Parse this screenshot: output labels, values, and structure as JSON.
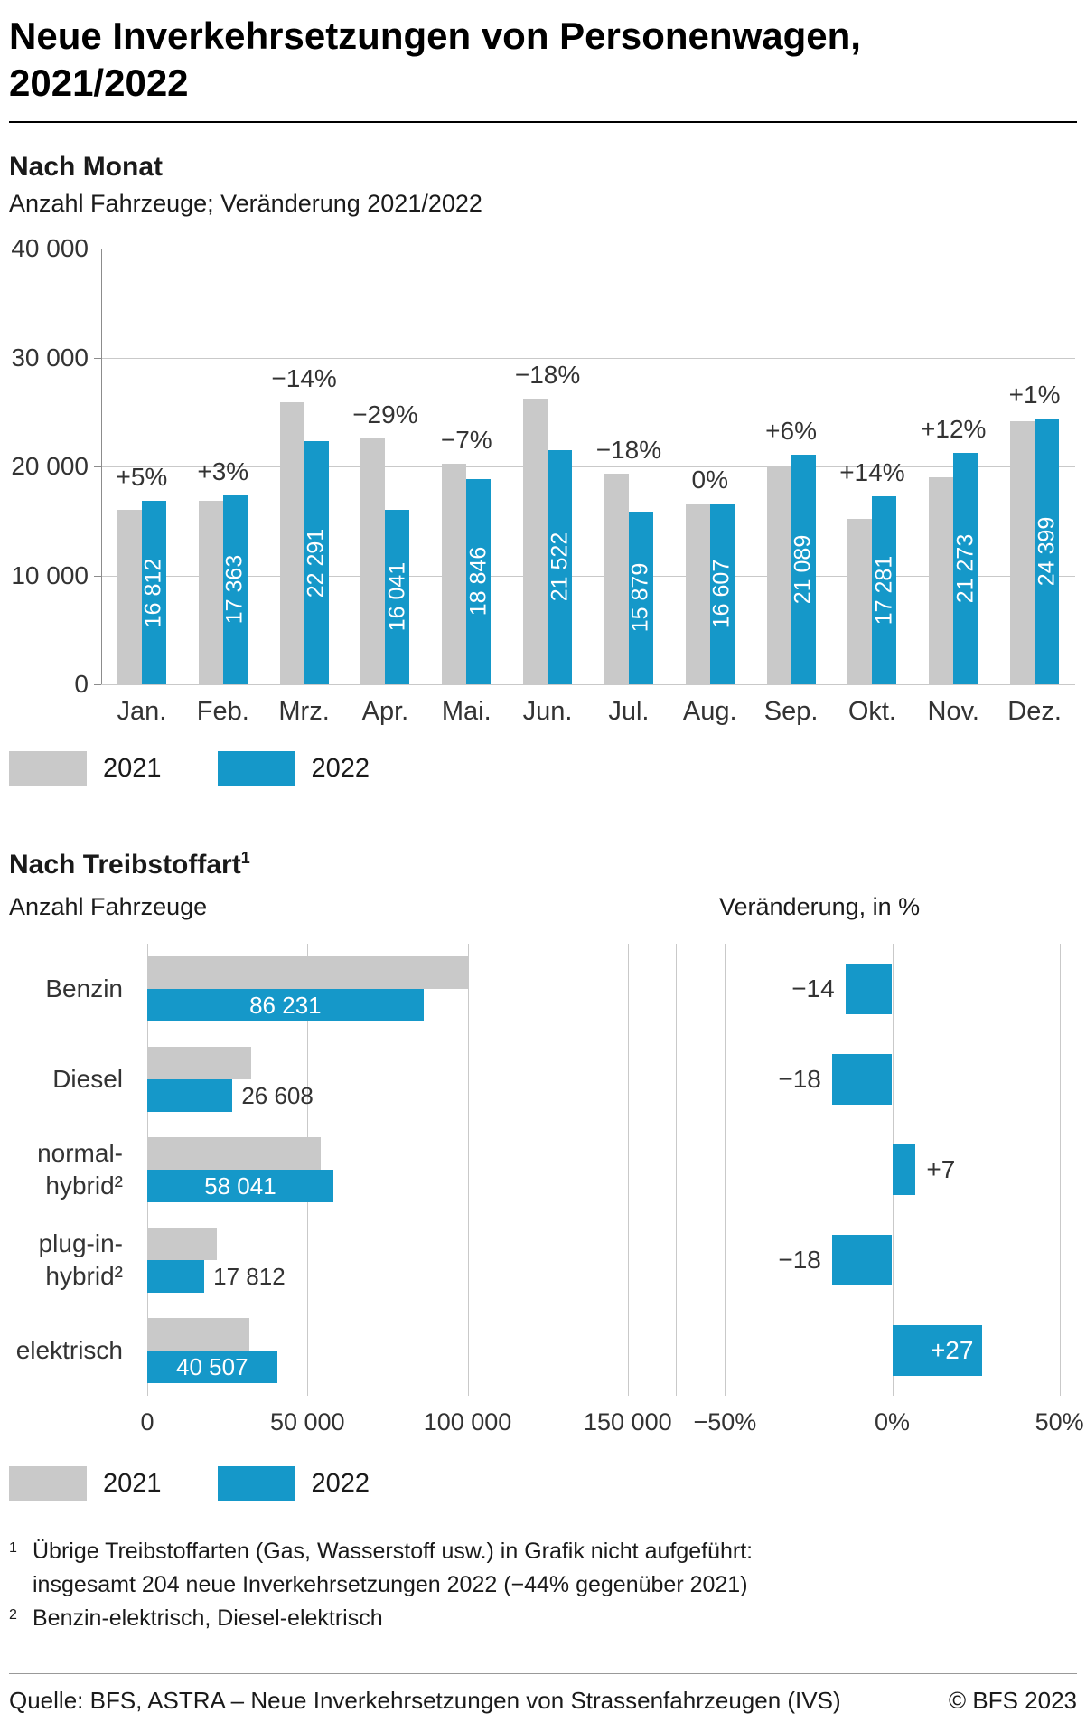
{
  "page": {
    "title_line1": "Neue Inverkehrsetzungen von Personenwagen,",
    "title_line2": "2021/2022",
    "footer_source": "Quelle: BFS, ASTRA – Neue Inverkehrsetzungen von Strassenfahrzeugen (IVS)",
    "footer_copyright": "© BFS 2023"
  },
  "colors": {
    "bar_2021": "#c9c9c9",
    "bar_2022": "#1598c9",
    "grid": "#c9c9c9",
    "axis": "#8c8c8c",
    "text": "#333333"
  },
  "legend": {
    "label_2021": "2021",
    "label_2022": "2022"
  },
  "section_month": {
    "heading": "Nach Monat",
    "subtitle": "Anzahl Fahrzeuge; Veränderung 2021/2022"
  },
  "section_fuel": {
    "heading": "Nach Treibstoffart",
    "heading_sup": "1",
    "left_title": "Anzahl Fahrzeuge",
    "right_title": "Veränderung, in %"
  },
  "footnotes": [
    {
      "sup": "1",
      "line1": "Übrige Treibstoffarten (Gas, Wasserstoff usw.) in Grafik nicht aufgeführt:",
      "line2": "insgesamt 204 neue Inverkehrsetzungen 2022 (−44% gegenüber 2021)"
    },
    {
      "sup": "2",
      "line1": "Benzin-elektrisch, Diesel-elektrisch"
    }
  ],
  "chart_data": [
    {
      "type": "bar",
      "title": "Nach Monat",
      "subtitle": "Anzahl Fahrzeuge; Veränderung 2021/2022",
      "categories": [
        "Jan.",
        "Feb.",
        "Mrz.",
        "Apr.",
        "Mai.",
        "Jun.",
        "Jul.",
        "Aug.",
        "Sep.",
        "Okt.",
        "Nov.",
        "Dez."
      ],
      "series": [
        {
          "name": "2021",
          "estimated": true,
          "values": [
            16012,
            16857,
            25920,
            22593,
            20265,
            26246,
            19365,
            16607,
            19895,
            15159,
            18994,
            24157
          ]
        },
        {
          "name": "2022",
          "values": [
            16812,
            17363,
            22291,
            16041,
            18846,
            21522,
            15879,
            16607,
            21089,
            17281,
            21273,
            24399
          ]
        }
      ],
      "value_labels_2022": [
        "16 812",
        "17 363",
        "22 291",
        "16 041",
        "18 846",
        "21 522",
        "15 879",
        "16 607",
        "21 089",
        "17 281",
        "21 273",
        "24 399"
      ],
      "change_labels": [
        "+5%",
        "+3%",
        "−14%",
        "−29%",
        "−7%",
        "−18%",
        "−18%",
        "0%",
        "+6%",
        "+14%",
        "+12%",
        "+1%"
      ],
      "ylim": [
        0,
        40000
      ],
      "ytick_values": [
        0,
        10000,
        20000,
        30000,
        40000
      ],
      "ytick_labels": [
        "0",
        "10 000",
        "20 000",
        "30 000",
        "40 000"
      ],
      "grid": true,
      "legend": [
        "2021",
        "2022"
      ],
      "legend_position": "below-left"
    },
    {
      "type": "bar",
      "orientation": "horizontal",
      "title": "Nach Treibstoffart – Anzahl Fahrzeuge",
      "categories": [
        "Benzin",
        "Diesel",
        "normal-hybrid",
        "plug-in-hybrid",
        "elektrisch"
      ],
      "category_lines": [
        [
          "Benzin"
        ],
        [
          "Diesel"
        ],
        [
          "normal-",
          "hybrid²"
        ],
        [
          "plug-in-",
          "hybrid²"
        ],
        [
          "elektrisch"
        ]
      ],
      "series": [
        {
          "name": "2021",
          "estimated": true,
          "values": [
            100268,
            32449,
            54244,
            21722,
            31895
          ]
        },
        {
          "name": "2022",
          "values": [
            86231,
            26608,
            58041,
            17812,
            40507
          ]
        }
      ],
      "value_labels_2022": [
        "86 231",
        "26 608",
        "58 041",
        "17 812",
        "40 507"
      ],
      "label_inside": [
        true,
        false,
        true,
        false,
        true
      ],
      "xlim": [
        0,
        165000
      ],
      "xtick_values": [
        0,
        50000,
        100000,
        150000
      ],
      "xtick_labels": [
        "0",
        "50 000",
        "100 000",
        "150 000"
      ],
      "grid": true,
      "legend": [
        "2021",
        "2022"
      ],
      "legend_position": "below-left"
    },
    {
      "type": "bar",
      "orientation": "horizontal",
      "title": "Nach Treibstoffart – Veränderung, in %",
      "categories": [
        "Benzin",
        "Diesel",
        "normal-hybrid",
        "plug-in-hybrid",
        "elektrisch"
      ],
      "values": [
        -14,
        -18,
        7,
        -18,
        27
      ],
      "value_labels": [
        "−14",
        "−18",
        "+7",
        "−18",
        "+27"
      ],
      "label_inside": [
        false,
        false,
        false,
        false,
        true
      ],
      "xlim": [
        -52,
        52
      ],
      "xtick_values": [
        -50,
        0,
        50
      ],
      "xtick_labels": [
        "−50%",
        "0%",
        "50%"
      ],
      "grid": true
    }
  ]
}
